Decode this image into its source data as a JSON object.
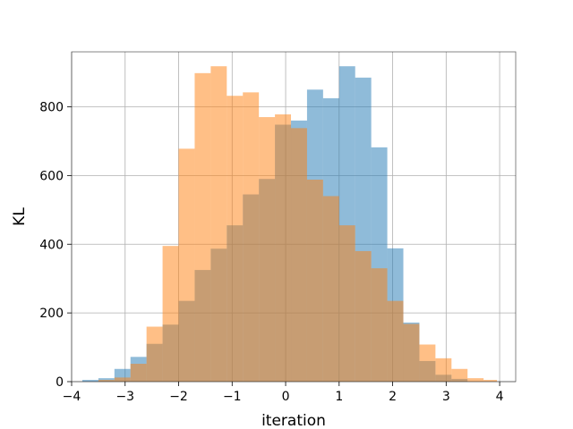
{
  "chart_data": {
    "type": "bar",
    "title": "",
    "xlabel": "iteration",
    "ylabel": "KL",
    "xlim": [
      -4.0,
      4.3
    ],
    "ylim": [
      0,
      960
    ],
    "grid": true,
    "xticks": [
      -4,
      -3,
      -2,
      -1,
      0,
      1,
      2,
      3,
      4
    ],
    "yticks": [
      0,
      200,
      400,
      600,
      800
    ],
    "series": [
      {
        "color": "#1f77b4",
        "opacity": 0.5,
        "bins": [
          {
            "x0": -3.8,
            "x1": -3.5,
            "value": 5
          },
          {
            "x0": -3.5,
            "x1": -3.2,
            "value": 10
          },
          {
            "x0": -3.2,
            "x1": -2.9,
            "value": 37
          },
          {
            "x0": -2.9,
            "x1": -2.6,
            "value": 72
          },
          {
            "x0": -2.6,
            "x1": -2.3,
            "value": 110
          },
          {
            "x0": -2.3,
            "x1": -2.0,
            "value": 166
          },
          {
            "x0": -2.0,
            "x1": -1.7,
            "value": 235
          },
          {
            "x0": -1.7,
            "x1": -1.4,
            "value": 325
          },
          {
            "x0": -1.4,
            "x1": -1.1,
            "value": 387
          },
          {
            "x0": -1.1,
            "x1": -0.8,
            "value": 455
          },
          {
            "x0": -0.8,
            "x1": -0.5,
            "value": 545
          },
          {
            "x0": -0.5,
            "x1": -0.2,
            "value": 590
          },
          {
            "x0": -0.2,
            "x1": 0.1,
            "value": 748
          },
          {
            "x0": 0.1,
            "x1": 0.4,
            "value": 760
          },
          {
            "x0": 0.4,
            "x1": 0.7,
            "value": 850
          },
          {
            "x0": 0.7,
            "x1": 1.0,
            "value": 825
          },
          {
            "x0": 1.0,
            "x1": 1.3,
            "value": 918
          },
          {
            "x0": 1.3,
            "x1": 1.6,
            "value": 885
          },
          {
            "x0": 1.6,
            "x1": 1.9,
            "value": 682
          },
          {
            "x0": 1.9,
            "x1": 2.2,
            "value": 388
          },
          {
            "x0": 2.2,
            "x1": 2.5,
            "value": 172
          },
          {
            "x0": 2.5,
            "x1": 2.8,
            "value": 60
          },
          {
            "x0": 2.8,
            "x1": 3.1,
            "value": 20
          },
          {
            "x0": 3.1,
            "x1": 3.4,
            "value": 8
          }
        ]
      },
      {
        "color": "#ff7f0e",
        "opacity": 0.5,
        "bins": [
          {
            "x0": -3.5,
            "x1": -3.2,
            "value": 5
          },
          {
            "x0": -3.2,
            "x1": -2.9,
            "value": 12
          },
          {
            "x0": -2.9,
            "x1": -2.6,
            "value": 52
          },
          {
            "x0": -2.6,
            "x1": -2.3,
            "value": 160
          },
          {
            "x0": -2.3,
            "x1": -2.0,
            "value": 395
          },
          {
            "x0": -2.0,
            "x1": -1.7,
            "value": 678
          },
          {
            "x0": -1.7,
            "x1": -1.4,
            "value": 898
          },
          {
            "x0": -1.4,
            "x1": -1.1,
            "value": 918
          },
          {
            "x0": -1.1,
            "x1": -0.8,
            "value": 832
          },
          {
            "x0": -0.8,
            "x1": -0.5,
            "value": 842
          },
          {
            "x0": -0.5,
            "x1": -0.2,
            "value": 770
          },
          {
            "x0": -0.2,
            "x1": 0.1,
            "value": 778
          },
          {
            "x0": 0.1,
            "x1": 0.4,
            "value": 738
          },
          {
            "x0": 0.4,
            "x1": 0.7,
            "value": 588
          },
          {
            "x0": 0.7,
            "x1": 1.0,
            "value": 540
          },
          {
            "x0": 1.0,
            "x1": 1.3,
            "value": 455
          },
          {
            "x0": 1.3,
            "x1": 1.6,
            "value": 380
          },
          {
            "x0": 1.6,
            "x1": 1.9,
            "value": 330
          },
          {
            "x0": 1.9,
            "x1": 2.2,
            "value": 235
          },
          {
            "x0": 2.2,
            "x1": 2.5,
            "value": 168
          },
          {
            "x0": 2.5,
            "x1": 2.8,
            "value": 108
          },
          {
            "x0": 2.8,
            "x1": 3.1,
            "value": 68
          },
          {
            "x0": 3.1,
            "x1": 3.4,
            "value": 37
          },
          {
            "x0": 3.4,
            "x1": 3.7,
            "value": 10
          },
          {
            "x0": 3.7,
            "x1": 3.95,
            "value": 5
          }
        ]
      }
    ]
  }
}
